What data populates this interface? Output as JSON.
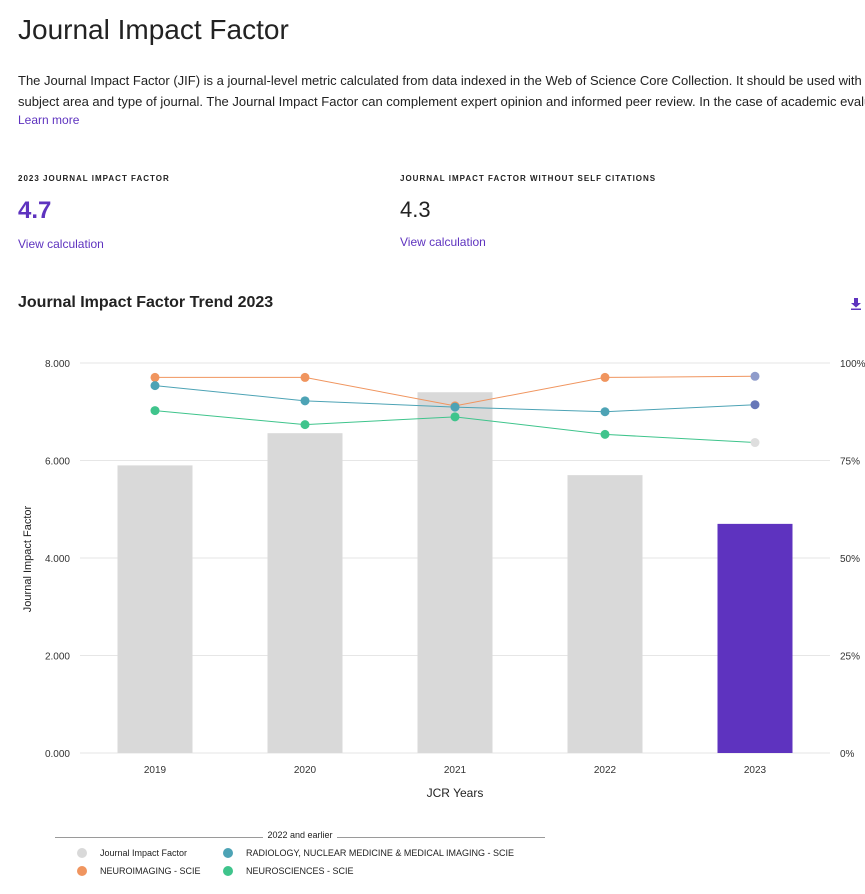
{
  "page": {
    "title": "Journal Impact Factor",
    "description_line1": "The Journal Impact Factor (JIF) is a journal-level metric calculated from data indexed in the Web of Science Core Collection. It should be used with ca",
    "description_line2": "subject area and type of journal. The Journal Impact Factor can complement expert opinion and informed peer review. In the case of academic evalua",
    "learn_more": "Learn more"
  },
  "metrics": [
    {
      "label": "2023 JOURNAL IMPACT FACTOR",
      "value": "4.7",
      "link": "View calculation"
    },
    {
      "label": "JOURNAL IMPACT FACTOR WITHOUT SELF CITATIONS",
      "value": "4.3",
      "link": "View calculation"
    }
  ],
  "trend": {
    "title": "Journal Impact Factor Trend 2023",
    "download_icon": "download-icon"
  },
  "colors": {
    "accent": "#5e33bf",
    "bar": "#d9d9d9",
    "radiology": "#4da3b5",
    "neuroimaging": "#f0955f",
    "neurosciences": "#3fc48c"
  },
  "chart_data": {
    "type": "bar",
    "categories": [
      "2019",
      "2020",
      "2021",
      "2022",
      "2023"
    ],
    "values": [
      5.9,
      6.56,
      7.4,
      5.7,
      4.7
    ],
    "xlabel": "JCR Years",
    "ylabel": "Journal Impact Factor",
    "ylim": [
      0,
      8
    ],
    "yticks": [
      "0.000",
      "2.000",
      "4.000",
      "6.000",
      "8.000"
    ],
    "y2lim": [
      0,
      100
    ],
    "y2ticks": [
      "0%",
      "25%",
      "50%",
      "75%",
      "100%"
    ],
    "grid": true,
    "series": [
      {
        "name": "NEUROIMAGING - SCIE",
        "axis": "right",
        "values": [
          96.3,
          96.3,
          89,
          96.3,
          96.6
        ]
      },
      {
        "name": "RADIOLOGY, NUCLEAR MEDICINE & MEDICAL IMAGING - SCIE",
        "axis": "right",
        "values": [
          94.2,
          90.3,
          88.7,
          87.5,
          89.3
        ]
      },
      {
        "name": "NEUROSCIENCES - SCIE",
        "axis": "right",
        "values": [
          87.8,
          84.2,
          86.2,
          81.7,
          79.6
        ]
      }
    ],
    "legend": {
      "title": "2022 and earlier",
      "placement": "bottom",
      "items": [
        {
          "label": "Journal Impact Factor",
          "color": "#d9d9d9"
        },
        {
          "label": "RADIOLOGY, NUCLEAR MEDICINE & MEDICAL IMAGING - SCIE",
          "color": "#4da3b5"
        },
        {
          "label": "NEUROIMAGING - SCIE",
          "color": "#f0955f"
        },
        {
          "label": "NEUROSCIENCES - SCIE",
          "color": "#3fc48c"
        }
      ]
    }
  }
}
